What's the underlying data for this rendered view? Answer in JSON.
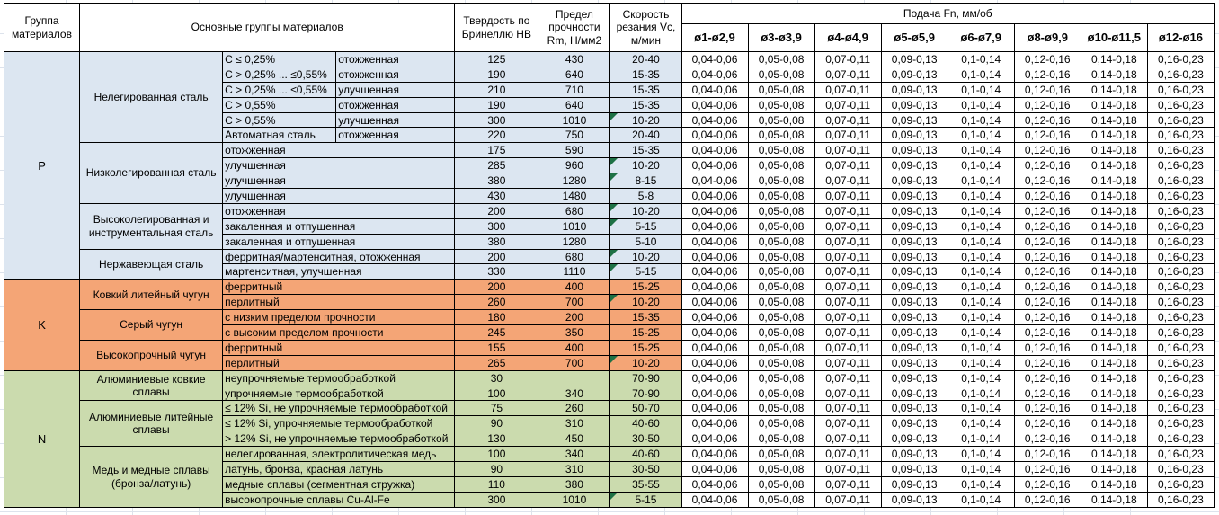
{
  "table": {
    "header": {
      "group_col": "Группа материалов",
      "materials_col": "Основные группы материалов",
      "hardness_col": "Твердость по Бринеллю HB",
      "strength_col": "Предел прочности Rm, Н/мм2",
      "speed_col": "Скорость резания Vc, м/мин",
      "feed_col": "Подача Fn, мм/об",
      "feed_subcols": [
        "ø1-ø2,9",
        "ø3-ø3,9",
        "ø4-ø4,9",
        "ø5-ø5,9",
        "ø6-ø7,9",
        "ø8-ø9,9",
        "ø10-ø11,5",
        "ø12-ø16"
      ]
    },
    "feed_values_all_rows": [
      "0,04-0,06",
      "0,05-0,08",
      "0,07-0,11",
      "0,09-0,13",
      "0,1-0,14",
      "0,12-0,16",
      "0,14-0,18",
      "0,16-0,23"
    ],
    "colors": {
      "group_P": "#dce6f1",
      "group_K": "#f4a576",
      "group_N": "#cbdbae",
      "flag": "#1e7145"
    },
    "groups": [
      {
        "letter": "P",
        "color": "#dce6f1",
        "subgroups": [
          {
            "name": "Нелегированная сталь",
            "rows": [
              {
                "detail": [
                  "C ≤ 0,25%",
                  "отожженная"
                ],
                "hb": "125",
                "rm": "430",
                "vc": "20-40",
                "vc_flag": false
              },
              {
                "detail": [
                  "C > 0,25% ... ≤0,55%",
                  "отожженная"
                ],
                "hb": "190",
                "rm": "640",
                "vc": "15-35",
                "vc_flag": false
              },
              {
                "detail": [
                  "C > 0,25% ... ≤0,55%",
                  "улучшенная"
                ],
                "hb": "210",
                "rm": "710",
                "vc": "15-35",
                "vc_flag": false
              },
              {
                "detail": [
                  "C > 0,55%",
                  "отожженная"
                ],
                "hb": "190",
                "rm": "640",
                "vc": "15-35",
                "vc_flag": false
              },
              {
                "detail": [
                  "C > 0,55%",
                  "улучшенная"
                ],
                "hb": "300",
                "rm": "1010",
                "vc": "10-20",
                "vc_flag": true
              },
              {
                "detail": [
                  "Автоматная сталь",
                  "отожженная"
                ],
                "hb": "220",
                "rm": "750",
                "vc": "20-40",
                "vc_flag": false
              }
            ]
          },
          {
            "name": "Низколегированная сталь",
            "rows": [
              {
                "detail": [
                  "отожженная"
                ],
                "hb": "175",
                "rm": "590",
                "vc": "15-35",
                "vc_flag": false
              },
              {
                "detail": [
                  "улучшенная"
                ],
                "hb": "285",
                "rm": "960",
                "vc": "10-20",
                "vc_flag": true
              },
              {
                "detail": [
                  "улучшенная"
                ],
                "hb": "380",
                "rm": "1280",
                "vc": "8-15",
                "vc_flag": true
              },
              {
                "detail": [
                  "улучшенная"
                ],
                "hb": "430",
                "rm": "1480",
                "vc": "5-8",
                "vc_flag": false
              }
            ]
          },
          {
            "name": "Высоколегированная и инструментальная сталь",
            "rows": [
              {
                "detail": [
                  "отожженная"
                ],
                "hb": "200",
                "rm": "680",
                "vc": "10-20",
                "vc_flag": true
              },
              {
                "detail": [
                  "закаленная и отпущенная"
                ],
                "hb": "300",
                "rm": "1010",
                "vc": "5-15",
                "vc_flag": true
              },
              {
                "detail": [
                  "закаленная и отпущенная"
                ],
                "hb": "380",
                "rm": "1280",
                "vc": "5-10",
                "vc_flag": false
              }
            ]
          },
          {
            "name": "Нержавеющая сталь",
            "rows": [
              {
                "detail": [
                  "ферритная/мартенситная, отожженная"
                ],
                "hb": "200",
                "rm": "680",
                "vc": "10-20",
                "vc_flag": true
              },
              {
                "detail": [
                  "мартенситная, улучшенная"
                ],
                "hb": "330",
                "rm": "1110",
                "vc": "5-15",
                "vc_flag": true
              }
            ]
          }
        ]
      },
      {
        "letter": "K",
        "color": "#f4a576",
        "subgroups": [
          {
            "name": "Ковкий литейный чугун",
            "rows": [
              {
                "detail": [
                  "ферритный"
                ],
                "hb": "200",
                "rm": "400",
                "vc": "15-25",
                "vc_flag": false
              },
              {
                "detail": [
                  "перлитный"
                ],
                "hb": "260",
                "rm": "700",
                "vc": "10-20",
                "vc_flag": true
              }
            ]
          },
          {
            "name": "Серый чугун",
            "rows": [
              {
                "detail": [
                  "с низким пределом прочности"
                ],
                "hb": "180",
                "rm": "200",
                "vc": "15-35",
                "vc_flag": false
              },
              {
                "detail": [
                  "с высоким пределом прочности"
                ],
                "hb": "245",
                "rm": "350",
                "vc": "15-25",
                "vc_flag": false
              }
            ]
          },
          {
            "name": "Высокопрочный чугун",
            "rows": [
              {
                "detail": [
                  "ферритный"
                ],
                "hb": "155",
                "rm": "400",
                "vc": "15-25",
                "vc_flag": false
              },
              {
                "detail": [
                  "перлитный"
                ],
                "hb": "265",
                "rm": "700",
                "vc": "10-20",
                "vc_flag": true
              }
            ]
          }
        ]
      },
      {
        "letter": "N",
        "color": "#cbdbae",
        "subgroups": [
          {
            "name": "Алюминиевые ковкие сплавы",
            "rows": [
              {
                "detail": [
                  "неупрочняемые термообработкой"
                ],
                "hb": "30",
                "rm": "",
                "vc": "70-90",
                "vc_flag": false
              },
              {
                "detail": [
                  "упрочняемые термообработкой"
                ],
                "hb": "100",
                "rm": "340",
                "vc": "70-90",
                "vc_flag": false
              }
            ]
          },
          {
            "name": "Алюминиевые литейные сплавы",
            "rows": [
              {
                "detail": [
                  "≤ 12% Si, не упрочняемые термообработкой"
                ],
                "hb": "75",
                "rm": "260",
                "vc": "50-70",
                "vc_flag": false
              },
              {
                "detail": [
                  "≤ 12% Si, упрочняемые термообработкой"
                ],
                "hb": "90",
                "rm": "310",
                "vc": "40-60",
                "vc_flag": false
              },
              {
                "detail": [
                  "> 12% Si, не упрочняемые термообработкой"
                ],
                "hb": "130",
                "rm": "450",
                "vc": "30-50",
                "vc_flag": false
              }
            ]
          },
          {
            "name": "Медь и медные сплавы (бронза/латунь)",
            "rows": [
              {
                "detail": [
                  "нелегированная, электролитическая медь"
                ],
                "hb": "100",
                "rm": "340",
                "vc": "40-60",
                "vc_flag": false
              },
              {
                "detail": [
                  "латунь, бронза, красная латунь"
                ],
                "hb": "90",
                "rm": "310",
                "vc": "30-50",
                "vc_flag": false
              },
              {
                "detail": [
                  "медные сплавы (сегментная стружка)"
                ],
                "hb": "110",
                "rm": "380",
                "vc": "35-55",
                "vc_flag": false
              },
              {
                "detail": [
                  "высокопрочные сплавы Cu-Al-Fe"
                ],
                "hb": "300",
                "rm": "1010",
                "vc": "5-15",
                "vc_flag": true
              }
            ]
          }
        ]
      }
    ]
  }
}
